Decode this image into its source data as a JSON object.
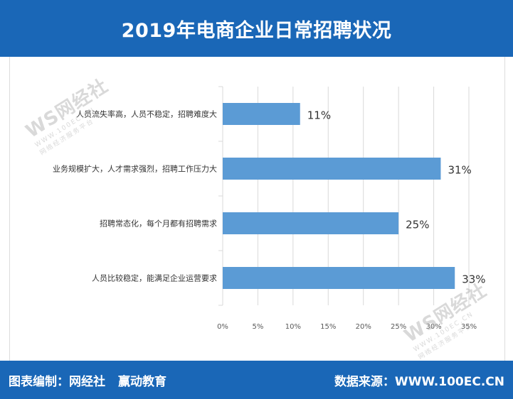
{
  "title": "2019年电商企业日常招聘状况",
  "footer": {
    "editor": "图表编制：网经社",
    "partner": "赢动教育",
    "source": "数据来源：WWW.100EC.CN"
  },
  "watermarks": [
    {
      "brand": "WS网经社",
      "url": "WWW.100EC.CN",
      "tagline": "网络经济服务平台"
    },
    {
      "brand": "WS网经社",
      "url": "WWW.100EC.CN",
      "tagline": "网络经济服务平台"
    }
  ],
  "colors": {
    "header_band": "#1a67b7",
    "bar": "#5b9bd5",
    "grid": "#d9d9d9",
    "axis_text": "#595959"
  },
  "chart_data": {
    "type": "bar",
    "orientation": "horizontal",
    "title": "",
    "xlabel": "",
    "ylabel": "",
    "categories": [
      "人员流失率高，人员不稳定，招聘难度大",
      "业务规模扩大，人才需求强烈，招聘工作压力大",
      "招聘常态化，每个月都有招聘需求",
      "人员比较稳定，能满足企业运营要求"
    ],
    "values": [
      11,
      31,
      25,
      33
    ],
    "value_labels": [
      "11%",
      "31%",
      "25%",
      "33%"
    ],
    "xlim": [
      0,
      35
    ],
    "xticks": [
      0,
      5,
      10,
      15,
      20,
      25,
      30,
      35
    ],
    "xtick_labels": [
      "0%",
      "5%",
      "10%",
      "15%",
      "20%",
      "25%",
      "30%",
      "35%"
    ],
    "grid": true,
    "legend": "none"
  }
}
